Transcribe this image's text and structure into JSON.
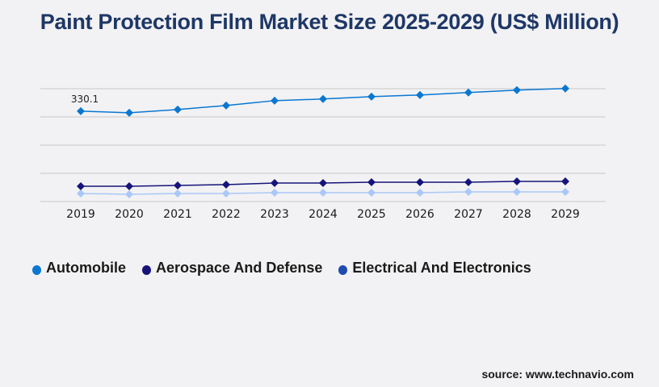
{
  "title": "Paint Protection Film Market Size 2025-2029 (US$ Million)",
  "source": "source: www.technavio.com",
  "chart_data": {
    "type": "line",
    "title": "Paint Protection Film Market Size 2025-2029 (US$ Million)",
    "xlabel": "",
    "ylabel": "",
    "x": [
      "2019",
      "2020",
      "2021",
      "2022",
      "2023",
      "2024",
      "2025",
      "2026",
      "2027",
      "2028",
      "2029"
    ],
    "ylim": [
      0,
      412
    ],
    "grid": true,
    "legend_position": "bottom-left",
    "series": [
      {
        "name": "Automobile",
        "color": "#0a77d0",
        "values": [
          330.1,
          324.2,
          336.0,
          350.7,
          368.4,
          374.3,
          383.1,
          389.0,
          397.9,
          406.7,
          412.6
        ]
      },
      {
        "name": "Aerospace And Defense",
        "color": "#16147a",
        "values": [
          56.0,
          56.0,
          59.0,
          61.9,
          67.8,
          67.8,
          70.7,
          70.7,
          70.7,
          73.7,
          73.7
        ]
      },
      {
        "name": "Electrical And Electronics",
        "color": "#a9c8f7",
        "legend_color": "#1d4bb0",
        "values": [
          29.5,
          26.5,
          29.5,
          29.5,
          32.4,
          32.4,
          32.4,
          32.4,
          35.4,
          35.4,
          35.4
        ]
      }
    ],
    "annotations": [
      {
        "series": "Automobile",
        "x": "2019",
        "text": "330.1"
      }
    ]
  }
}
